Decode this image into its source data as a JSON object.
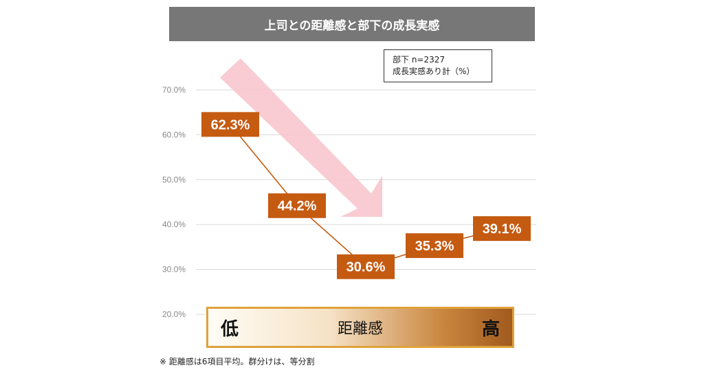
{
  "title": "上司との距離感と部下の成長実感",
  "legend": {
    "line1": "部下 n=2327",
    "line2": "成長実感あり計（%）"
  },
  "distance_bar": {
    "low": "低",
    "label": "距離感",
    "high": "高"
  },
  "footnote": "※ 距離感は6項目平均。群分けは、等分割",
  "colors": {
    "title_bg": "#777777",
    "series": "#c55a11",
    "arrow": "#f7c6cd",
    "grid": "#d9d9d9",
    "bar_border": "#e0a13a"
  },
  "chart_data": {
    "type": "line",
    "title": "上司との距離感と部下の成長実感",
    "ylim": [
      20,
      70
    ],
    "yticks": [
      "70.0%",
      "60.0%",
      "50.0%",
      "40.0%",
      "30.0%",
      "20.0%"
    ],
    "grid": true,
    "series": [
      {
        "values": [
          62.3,
          44.2,
          30.6,
          35.3,
          39.1
        ],
        "labels": [
          "62.3%",
          "44.2%",
          "30.6%",
          "35.3%",
          "39.1%"
        ]
      }
    ]
  }
}
